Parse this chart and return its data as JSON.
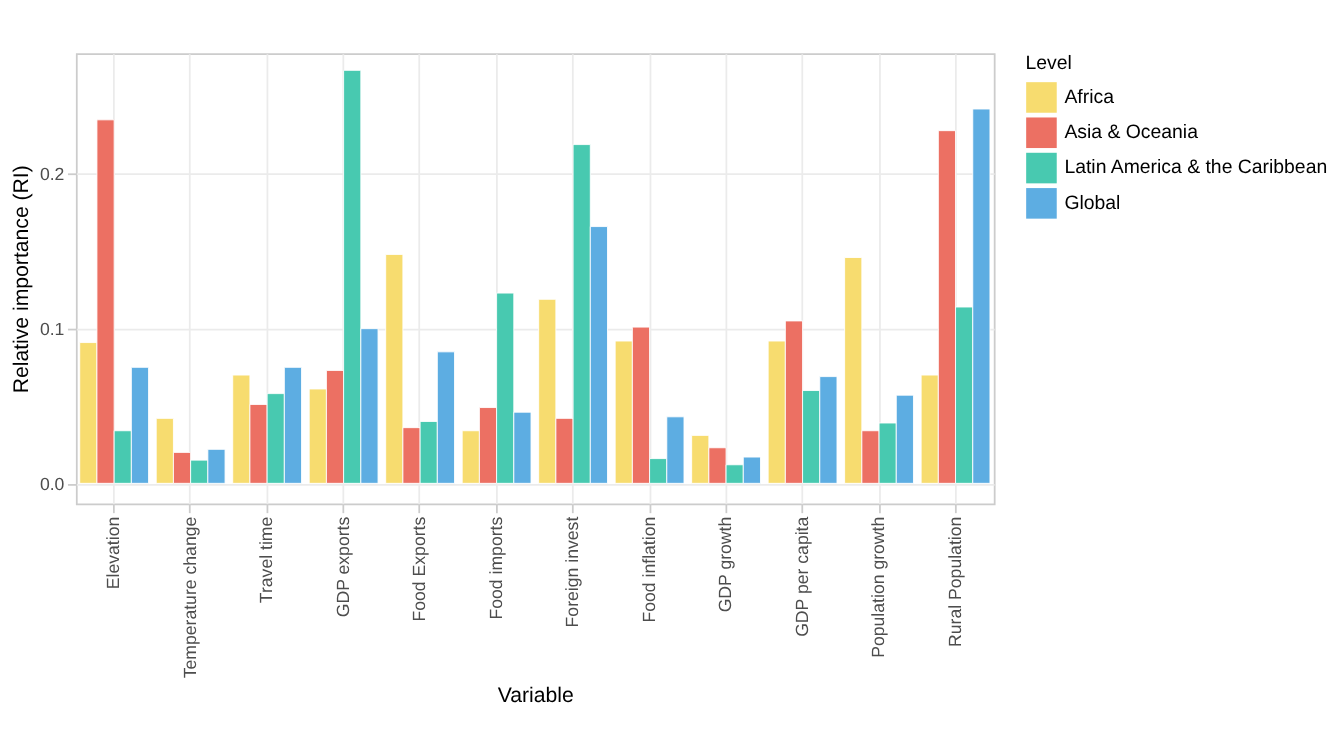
{
  "chart_data": {
    "type": "bar",
    "xlabel": "Variable",
    "ylabel": "Relative importance (RI)",
    "legend_title": "Level",
    "categories": [
      "Elevation",
      "Temperature change",
      "Travel time",
      "GDP exports",
      "Food Exports",
      "Food imports",
      "Foreign invest",
      "Food inflation",
      "GDP growth",
      "GDP per capita",
      "Population growth",
      "Rural Population"
    ],
    "series": [
      {
        "name": "Africa",
        "color": "#f7dc6f",
        "values": [
          0.091,
          0.042,
          0.07,
          0.061,
          0.148,
          0.034,
          0.119,
          0.092,
          0.031,
          0.092,
          0.146,
          0.07
        ]
      },
      {
        "name": "Asia & Oceania",
        "color": "#ec7063",
        "values": [
          0.235,
          0.02,
          0.051,
          0.073,
          0.036,
          0.049,
          0.042,
          0.101,
          0.023,
          0.105,
          0.034,
          0.228
        ]
      },
      {
        "name": "Latin America & the Caribbean",
        "color": "#48c9b0",
        "values": [
          0.034,
          0.015,
          0.058,
          0.267,
          0.04,
          0.123,
          0.219,
          0.016,
          0.012,
          0.06,
          0.039,
          0.114
        ]
      },
      {
        "name": "Global",
        "color": "#5dade2",
        "values": [
          0.075,
          0.022,
          0.075,
          0.1,
          0.085,
          0.046,
          0.166,
          0.043,
          0.017,
          0.069,
          0.057,
          0.242
        ]
      }
    ],
    "ylim": [
      -0.013,
      0.278
    ],
    "yticks": [
      {
        "value": 0,
        "label": "0.0"
      },
      {
        "value": 0.1,
        "label": "0.1"
      },
      {
        "value": 0.2,
        "label": "0.2"
      }
    ],
    "grid": true,
    "legend": "right"
  }
}
